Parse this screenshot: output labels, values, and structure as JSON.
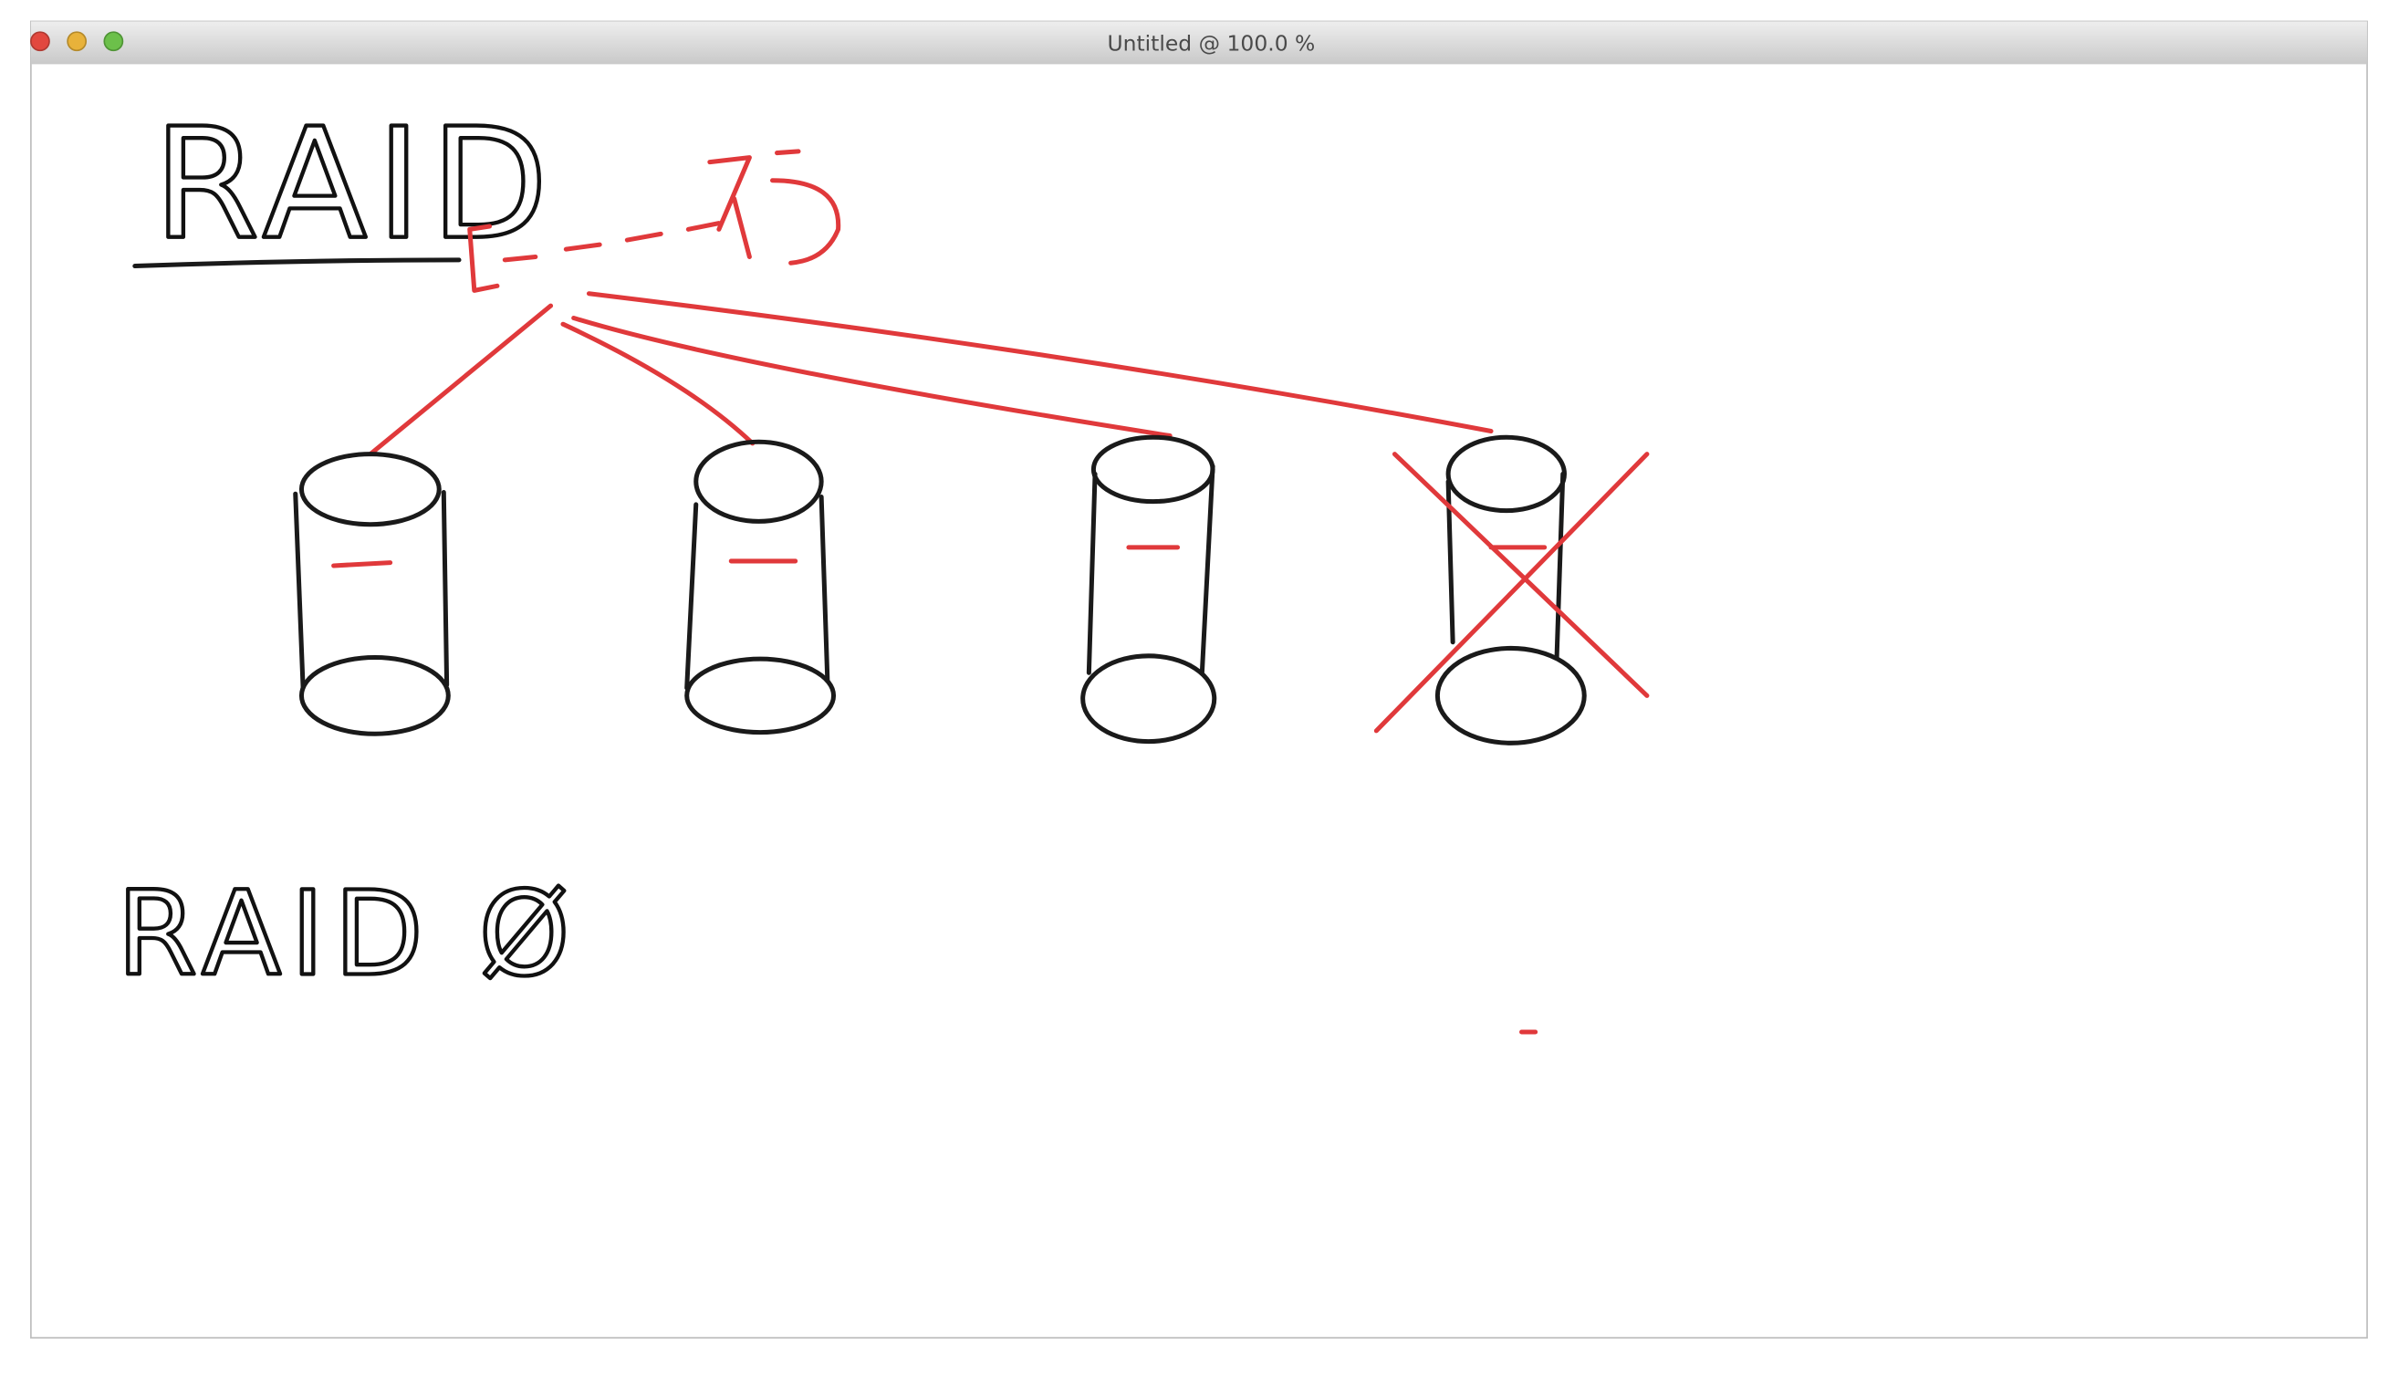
{
  "window": {
    "title": "Untitled @ 100.0 %"
  },
  "canvas": {
    "heading": "RAID",
    "subheading": "RAID Ø"
  }
}
